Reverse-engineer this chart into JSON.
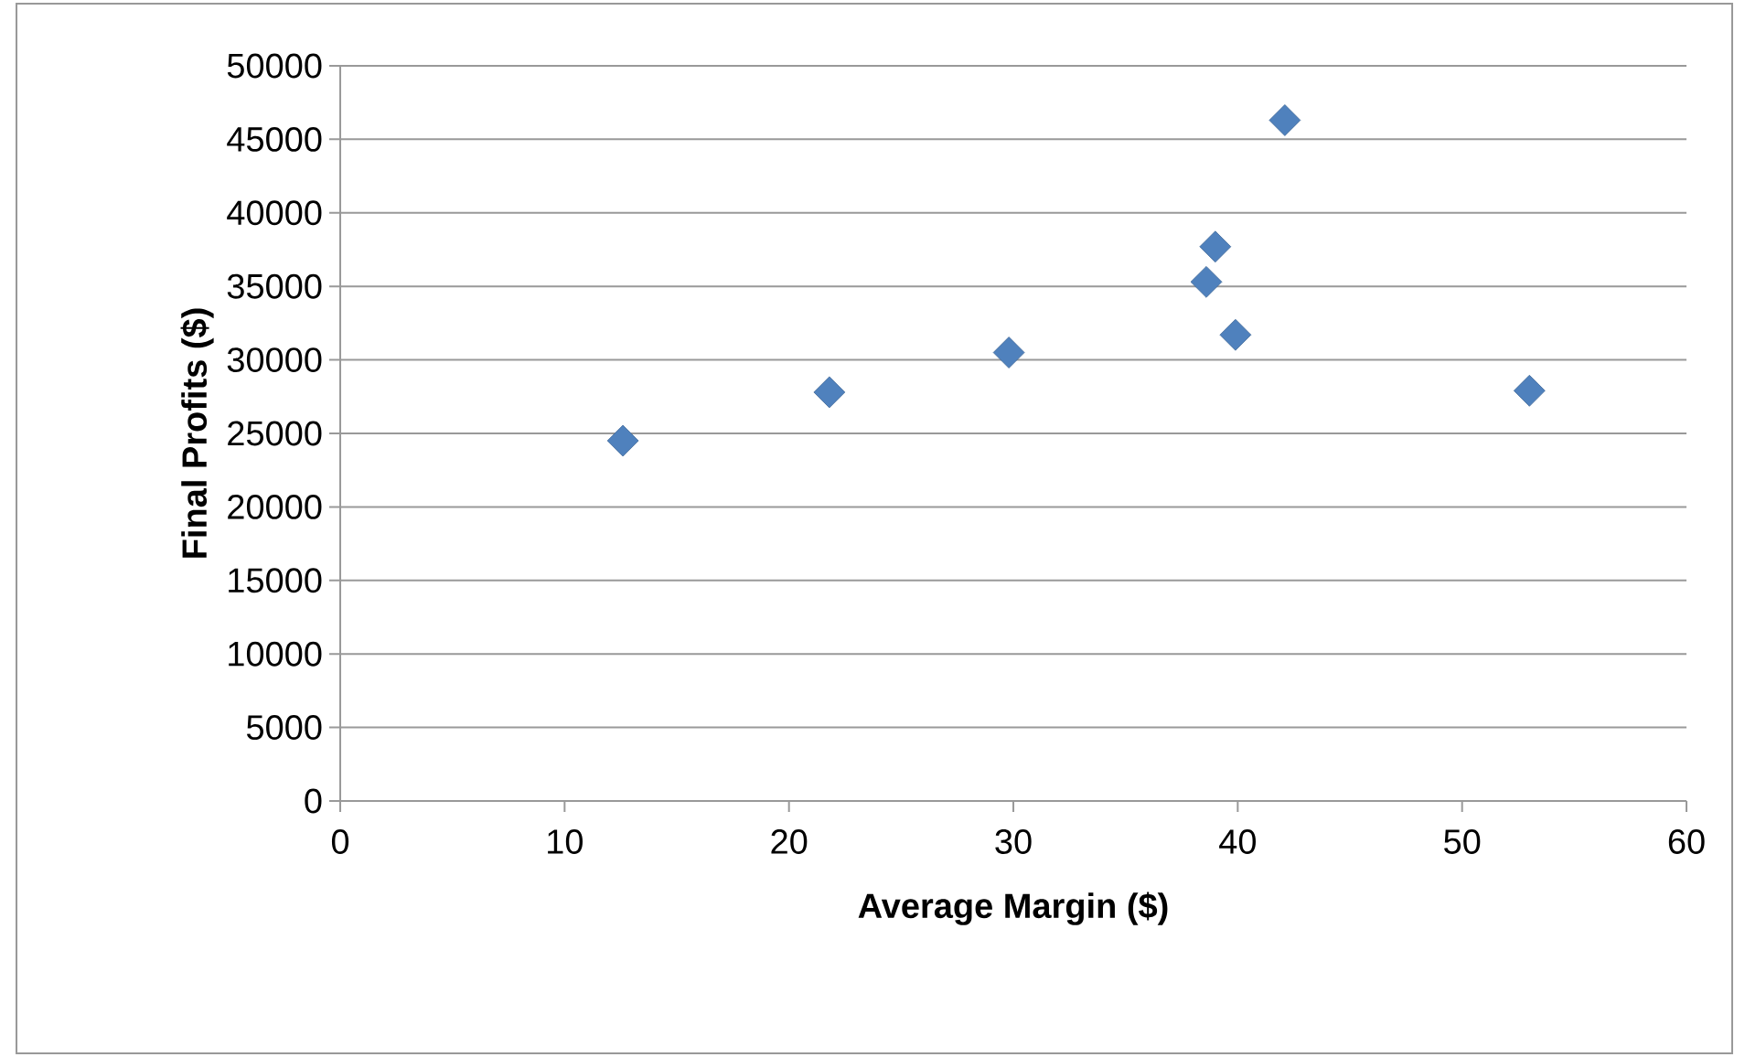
{
  "chart_data": {
    "type": "scatter",
    "xlabel": "Average Margin  ($)",
    "ylabel": "Final Profits ($)",
    "series": [
      {
        "color": "#4f81bd",
        "x": [
          12.6,
          21.8,
          29.8,
          38.6,
          39.0,
          39.9,
          42.1,
          53.0
        ],
        "values": [
          24500,
          27800,
          30500,
          35300,
          37700,
          31700,
          46300,
          27900
        ]
      }
    ],
    "xlim": [
      0,
      60
    ],
    "xticks": [
      0,
      10,
      20,
      30,
      40,
      50,
      60
    ],
    "ylim": [
      0,
      50000
    ],
    "yticks": [
      0,
      5000,
      10000,
      15000,
      20000,
      25000,
      30000,
      35000,
      40000,
      45000,
      50000
    ],
    "grid": "y",
    "marker": "diamond"
  }
}
